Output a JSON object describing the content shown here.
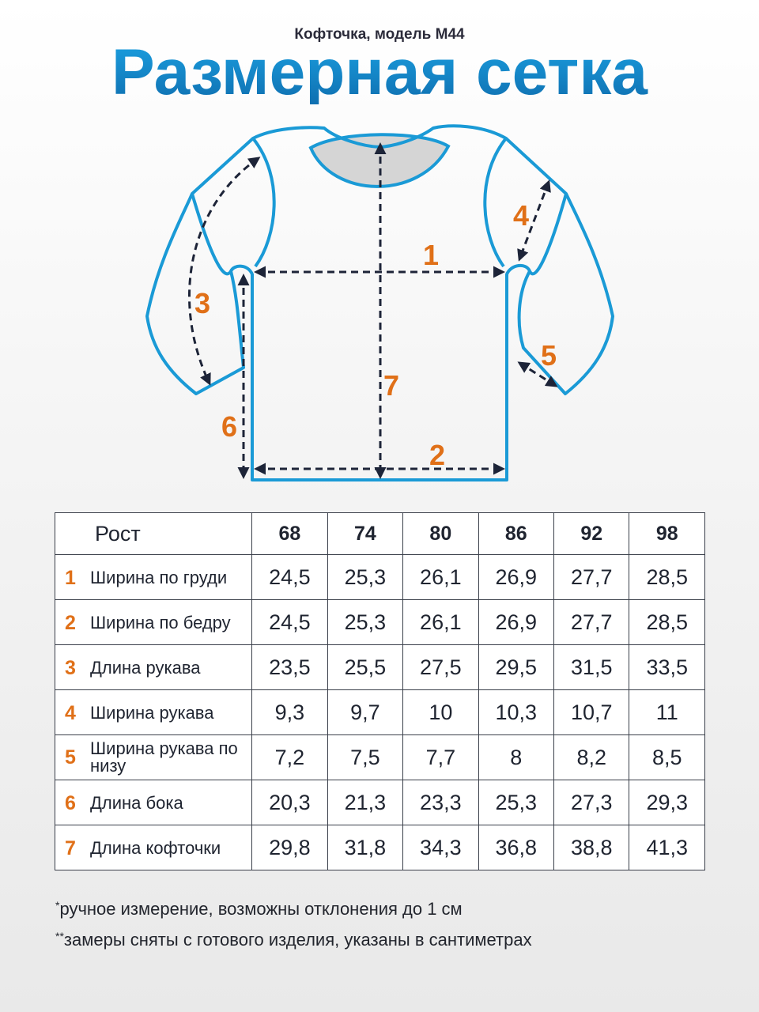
{
  "header": {
    "subtitle": "Кофточка, модель М44",
    "title": "Размерная сетка"
  },
  "colors": {
    "title": "#1a86c8",
    "outline": "#1a9ad6",
    "arrow": "#1d2438",
    "number": "#e07018",
    "neck": "#d5d5d5"
  },
  "diagram": {
    "labels": [
      "1",
      "2",
      "3",
      "4",
      "5",
      "6",
      "7"
    ]
  },
  "table": {
    "header_label": "Рост",
    "sizes": [
      "68",
      "74",
      "80",
      "86",
      "92",
      "98"
    ],
    "rows": [
      {
        "num": "1",
        "name": "Ширина по груди",
        "values": [
          "24,5",
          "25,3",
          "26,1",
          "26,9",
          "27,7",
          "28,5"
        ]
      },
      {
        "num": "2",
        "name": "Ширина по бедру",
        "values": [
          "24,5",
          "25,3",
          "26,1",
          "26,9",
          "27,7",
          "28,5"
        ]
      },
      {
        "num": "3",
        "name": "Длина рукава",
        "values": [
          "23,5",
          "25,5",
          "27,5",
          "29,5",
          "31,5",
          "33,5"
        ]
      },
      {
        "num": "4",
        "name": "Ширина рукава",
        "values": [
          "9,3",
          "9,7",
          "10",
          "10,3",
          "10,7",
          "11"
        ]
      },
      {
        "num": "5",
        "name": "Ширина рукава по низу",
        "values": [
          "7,2",
          "7,5",
          "7,7",
          "8",
          "8,2",
          "8,5"
        ]
      },
      {
        "num": "6",
        "name": "Длина бока",
        "values": [
          "20,3",
          "21,3",
          "23,3",
          "25,3",
          "27,3",
          "29,3"
        ]
      },
      {
        "num": "7",
        "name": "Длина кофточки",
        "values": [
          "29,8",
          "31,8",
          "34,3",
          "36,8",
          "38,8",
          "41,3"
        ]
      }
    ]
  },
  "footnotes": {
    "note1_mark": "*",
    "note1": "ручное измерение, возможны отклонения до 1 см",
    "note2_mark": "**",
    "note2": "замеры сняты с готового изделия, указаны в сантиметрах"
  }
}
